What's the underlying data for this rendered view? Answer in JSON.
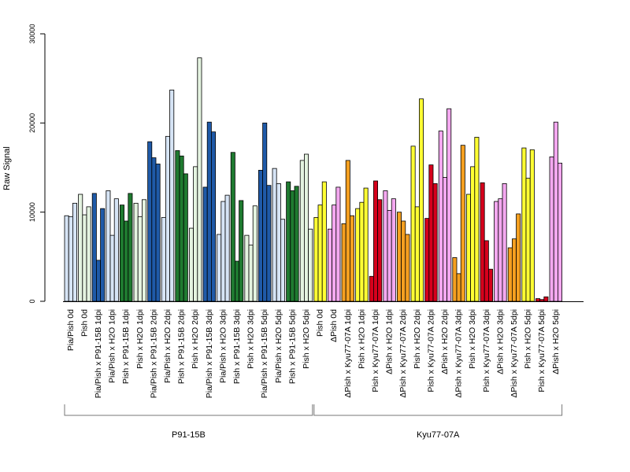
{
  "chart_data": {
    "type": "bar",
    "ylabel": "Raw Signal",
    "ylim": [
      0,
      30000
    ],
    "yticks": [
      0,
      10000,
      20000,
      30000
    ],
    "colors": {
      "lightblue": "#d6e4f5",
      "darkblue": "#1f5aa8",
      "lightgreen": "#e4f3e0",
      "darkgreen": "#1f7a30",
      "yellow": "#ffff33",
      "pink": "#f4a8f0",
      "orange": "#f5a020",
      "red": "#d6001c"
    },
    "categories": [
      {
        "label": "Pia/Pish 0d",
        "color": "lightblue",
        "values": [
          9600,
          9500,
          11000
        ]
      },
      {
        "label": "Pish 0d",
        "color": "lightgreen",
        "values": [
          12000,
          9700,
          10600
        ]
      },
      {
        "label": "Pia/Pish x P91-15B 1dpi",
        "color": "darkblue",
        "values": [
          12100,
          4600,
          10400
        ]
      },
      {
        "label": "Pia/Pish x H2O 1dpi",
        "color": "lightblue",
        "values": [
          12400,
          7400,
          11500
        ]
      },
      {
        "label": "Pish x P91-15B 1dpi",
        "color": "darkgreen",
        "values": [
          10800,
          9000,
          12100
        ]
      },
      {
        "label": "Pish x H2O 1dpi",
        "color": "lightgreen",
        "values": [
          11000,
          9500,
          11400
        ]
      },
      {
        "label": "Pia/Pish x P91-15B 2dpi",
        "color": "darkblue",
        "values": [
          17900,
          16100,
          15400
        ]
      },
      {
        "label": "Pia/Pish x H2O 2dpi",
        "color": "lightblue",
        "values": [
          9400,
          18500,
          23700
        ]
      },
      {
        "label": "Pish x P91-15B 2dpi",
        "color": "darkgreen",
        "values": [
          16900,
          16300,
          14300
        ]
      },
      {
        "label": "Pish x H2O 2dpi",
        "color": "lightgreen",
        "values": [
          8200,
          15100,
          27300
        ]
      },
      {
        "label": "Pia/Pish x P91-15B 3dpi",
        "color": "darkblue",
        "values": [
          12800,
          20100,
          19000
        ]
      },
      {
        "label": "Pia/Pish x H2O 3dpi",
        "color": "lightblue",
        "values": [
          7500,
          11200,
          11900
        ]
      },
      {
        "label": "Pish x P91-15B 3dpi",
        "color": "darkgreen",
        "values": [
          16700,
          4500,
          11300
        ]
      },
      {
        "label": "Pish x H2O 3dpi",
        "color": "lightgreen",
        "values": [
          7400,
          6300,
          10700
        ]
      },
      {
        "label": "Pia/Pish x P91-15B 5dpi",
        "color": "darkblue",
        "values": [
          14700,
          20000,
          13000
        ]
      },
      {
        "label": "Pia/Pish x H2O 5dpi",
        "color": "lightblue",
        "values": [
          14900,
          13200,
          9200
        ]
      },
      {
        "label": "Pish x P91-15B 5dpi",
        "color": "darkgreen",
        "values": [
          13400,
          12400,
          12900
        ]
      },
      {
        "label": "Pish x H2O 5dpi",
        "color": "lightgreen",
        "values": [
          15800,
          16500,
          8100
        ]
      },
      {
        "label": "Pish 0d",
        "color": "yellow",
        "values": [
          9400,
          10800,
          13400
        ]
      },
      {
        "label": "ΔPish 0d",
        "color": "pink",
        "values": [
          8100,
          10800,
          12800
        ]
      },
      {
        "label": "ΔPish x Kyu77-07A 1dpi",
        "color": "orange",
        "values": [
          8700,
          15800,
          9600
        ]
      },
      {
        "label": "Pish x H2O 1dpi",
        "color": "yellow",
        "values": [
          10400,
          11100,
          12700
        ]
      },
      {
        "label": "Pish x Kyu77-07A 1dpi",
        "color": "red",
        "values": [
          2800,
          13500,
          11400
        ]
      },
      {
        "label": "ΔPish x H2O 1dpi",
        "color": "pink",
        "values": [
          12400,
          10200,
          11500
        ]
      },
      {
        "label": "ΔPish x Kyu77-07A 2dpi",
        "color": "orange",
        "values": [
          10000,
          9000,
          7500
        ]
      },
      {
        "label": "Pish x H2O 2dpi",
        "color": "yellow",
        "values": [
          17400,
          10600,
          22700
        ]
      },
      {
        "label": "Pish x Kyu77-07A 2dpi",
        "color": "red",
        "values": [
          9300,
          15300,
          13200
        ]
      },
      {
        "label": "ΔPish x H2O 2dpi",
        "color": "pink",
        "values": [
          19100,
          13900,
          21600
        ]
      },
      {
        "label": "ΔPish x Kyu77-07A 3dpi",
        "color": "orange",
        "values": [
          4900,
          3100,
          17500
        ]
      },
      {
        "label": "Pish x H2O 3dpi",
        "color": "yellow",
        "values": [
          12000,
          15100,
          18400
        ]
      },
      {
        "label": "Pish x Kyu77-07A 3dpi",
        "color": "red",
        "values": [
          13300,
          6800,
          3600
        ]
      },
      {
        "label": "ΔPish x H2O 3dpi",
        "color": "pink",
        "values": [
          11200,
          11500,
          13200
        ]
      },
      {
        "label": "ΔPish x Kyu77-07A 5dpi",
        "color": "orange",
        "values": [
          6000,
          7000,
          9800
        ]
      },
      {
        "label": "Pish x H2O 5dpi",
        "color": "yellow",
        "values": [
          17200,
          13800,
          17000
        ]
      },
      {
        "label": "Pish x Kyu77-07A 5dpi",
        "color": "red",
        "values": [
          300,
          200,
          500
        ]
      },
      {
        "label": "ΔPish x H2O 5dpi",
        "color": "pink",
        "values": [
          16200,
          20100,
          15500
        ]
      }
    ],
    "groups": [
      {
        "label": "P91-15B",
        "start": 0,
        "end": 17
      },
      {
        "label": "Kyu77-07A",
        "start": 18,
        "end": 35
      }
    ]
  }
}
